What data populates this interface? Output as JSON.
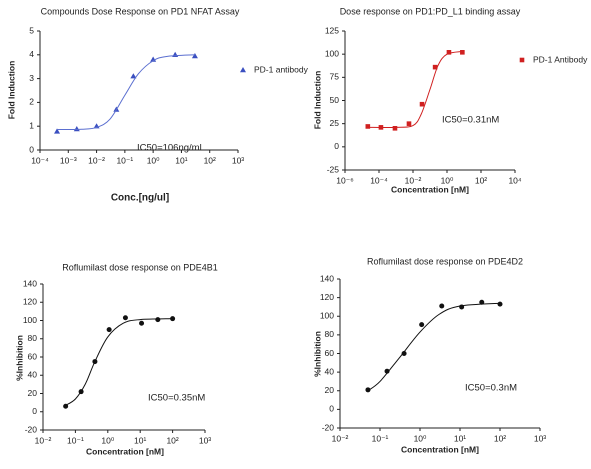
{
  "chart_data": [
    {
      "type": "scatter",
      "title": "Compounds Dose Response on PD1 NFAT Assay",
      "x_label": "Conc.[ng/ul]",
      "y_label": "Fold Induction",
      "annotation": "IC50=106ng/ml",
      "log_x": true,
      "legend": true,
      "xlim": [
        0.0001,
        1000
      ],
      "ylim": [
        0,
        5
      ],
      "xticks": [
        {
          "value": 0.0001,
          "label": "10⁻⁴"
        },
        {
          "value": 0.001,
          "label": "10⁻³"
        },
        {
          "value": 0.01,
          "label": "10⁻²"
        },
        {
          "value": 0.1,
          "label": "10⁻¹"
        },
        {
          "value": 1,
          "label": "10⁰"
        },
        {
          "value": 10,
          "label": "10¹"
        },
        {
          "value": 100,
          "label": "10²"
        },
        {
          "value": 1000,
          "label": "10³"
        }
      ],
      "yticks": [
        0,
        1,
        2,
        3,
        4,
        5
      ],
      "series": [
        {
          "name": "PD-1 antibody",
          "color": "#3a4fc0",
          "marker": "triangle",
          "x": [
            0.0004,
            0.002,
            0.01,
            0.05,
            0.2,
            1,
            6,
            30
          ],
          "values": [
            0.78,
            0.88,
            1.0,
            1.7,
            3.1,
            3.8,
            4.0,
            3.95
          ]
        },
        {
          "color": "#5b6fd0",
          "marker": "line",
          "x": [
            0.0004,
            0.003,
            0.01,
            0.03,
            0.1,
            0.3,
            1,
            3,
            30
          ],
          "values": [
            0.86,
            0.87,
            0.95,
            1.3,
            2.3,
            3.2,
            3.75,
            3.93,
            4.0
          ]
        }
      ]
    },
    {
      "type": "scatter",
      "title": "Dose response on PD1:PD_L1 binding assay",
      "x_label": "Concentration [nM]",
      "y_label": "Fold Induction",
      "annotation": "IC50=0.31nM",
      "log_x": true,
      "legend": true,
      "xlim": [
        1e-06,
        10000
      ],
      "ylim": [
        -25,
        125
      ],
      "xticks": [
        {
          "value": 1e-06,
          "label": "10⁻⁶"
        },
        {
          "value": 0.0001,
          "label": "10⁻⁴"
        },
        {
          "value": 0.01,
          "label": "10⁻²"
        },
        {
          "value": 1,
          "label": "10⁰"
        },
        {
          "value": 100,
          "label": "10²"
        },
        {
          "value": 10000,
          "label": "10⁴"
        }
      ],
      "yticks": [
        -25,
        0,
        25,
        50,
        75,
        100,
        125
      ],
      "series": [
        {
          "name": "PD-1 Antibody",
          "color": "#d02020",
          "marker": "square",
          "x": [
            2.2e-05,
            0.00013,
            0.00087,
            0.0058,
            0.034,
            0.2,
            1.3,
            8
          ],
          "values": [
            22,
            21,
            20,
            25,
            46,
            86,
            102,
            102
          ]
        },
        {
          "color": "#d02020",
          "marker": "line",
          "x": [
            2e-05,
            0.001,
            0.01,
            0.03,
            0.1,
            0.3,
            1,
            8
          ],
          "values": [
            21,
            21,
            23,
            35,
            62,
            88,
            100,
            103
          ]
        }
      ]
    },
    {
      "type": "scatter",
      "title": "Roflumilast dose response on PDE4B1",
      "x_label": "Concentration [nM]",
      "y_label": "%Inhibition",
      "annotation": "IC50=0.35nM",
      "log_x": true,
      "legend": false,
      "xlim": [
        0.01,
        1000
      ],
      "ylim": [
        -20,
        140
      ],
      "xticks": [
        {
          "value": 0.01,
          "label": "10⁻²"
        },
        {
          "value": 0.1,
          "label": "10⁻¹"
        },
        {
          "value": 1,
          "label": "10⁰"
        },
        {
          "value": 10,
          "label": "10¹"
        },
        {
          "value": 100,
          "label": "10²"
        },
        {
          "value": 1000,
          "label": "10³"
        }
      ],
      "yticks": [
        -20,
        0,
        20,
        40,
        60,
        80,
        100,
        120,
        140
      ],
      "series": [
        {
          "color": "#111111",
          "marker": "circle",
          "x": [
            0.05,
            0.15,
            0.4,
            1.1,
            3.5,
            11,
            35,
            100
          ],
          "values": [
            6,
            22,
            55,
            90,
            103,
            97,
            101,
            102
          ]
        },
        {
          "color": "#111111",
          "marker": "line",
          "x": [
            0.05,
            0.1,
            0.2,
            0.4,
            1,
            3,
            10,
            100
          ],
          "values": [
            7,
            14,
            30,
            55,
            82,
            97,
            101,
            102
          ]
        }
      ]
    },
    {
      "type": "scatter",
      "title": "Roflumilast dose response on PDE4D2",
      "x_label": "Concentration [nM]",
      "y_label": "%Inhibition",
      "annotation": "IC50=0.3nM",
      "log_x": true,
      "legend": false,
      "xlim": [
        0.01,
        1000
      ],
      "ylim": [
        -20,
        140
      ],
      "xticks": [
        {
          "value": 0.01,
          "label": "10⁻²"
        },
        {
          "value": 0.1,
          "label": "10⁻¹"
        },
        {
          "value": 1,
          "label": "10⁰"
        },
        {
          "value": 10,
          "label": "10¹"
        },
        {
          "value": 100,
          "label": "10²"
        },
        {
          "value": 1000,
          "label": "10³"
        }
      ],
      "yticks": [
        -20,
        0,
        20,
        40,
        60,
        80,
        100,
        120,
        140
      ],
      "series": [
        {
          "color": "#111111",
          "marker": "circle",
          "x": [
            0.05,
            0.15,
            0.4,
            1.1,
            3.5,
            11,
            35,
            100
          ],
          "values": [
            21,
            41,
            60,
            91,
            111,
            110,
            115,
            113
          ]
        },
        {
          "color": "#111111",
          "marker": "line",
          "x": [
            0.05,
            0.1,
            0.3,
            1,
            3,
            10,
            100
          ],
          "values": [
            20,
            30,
            55,
            83,
            102,
            111,
            114
          ]
        }
      ]
    }
  ]
}
